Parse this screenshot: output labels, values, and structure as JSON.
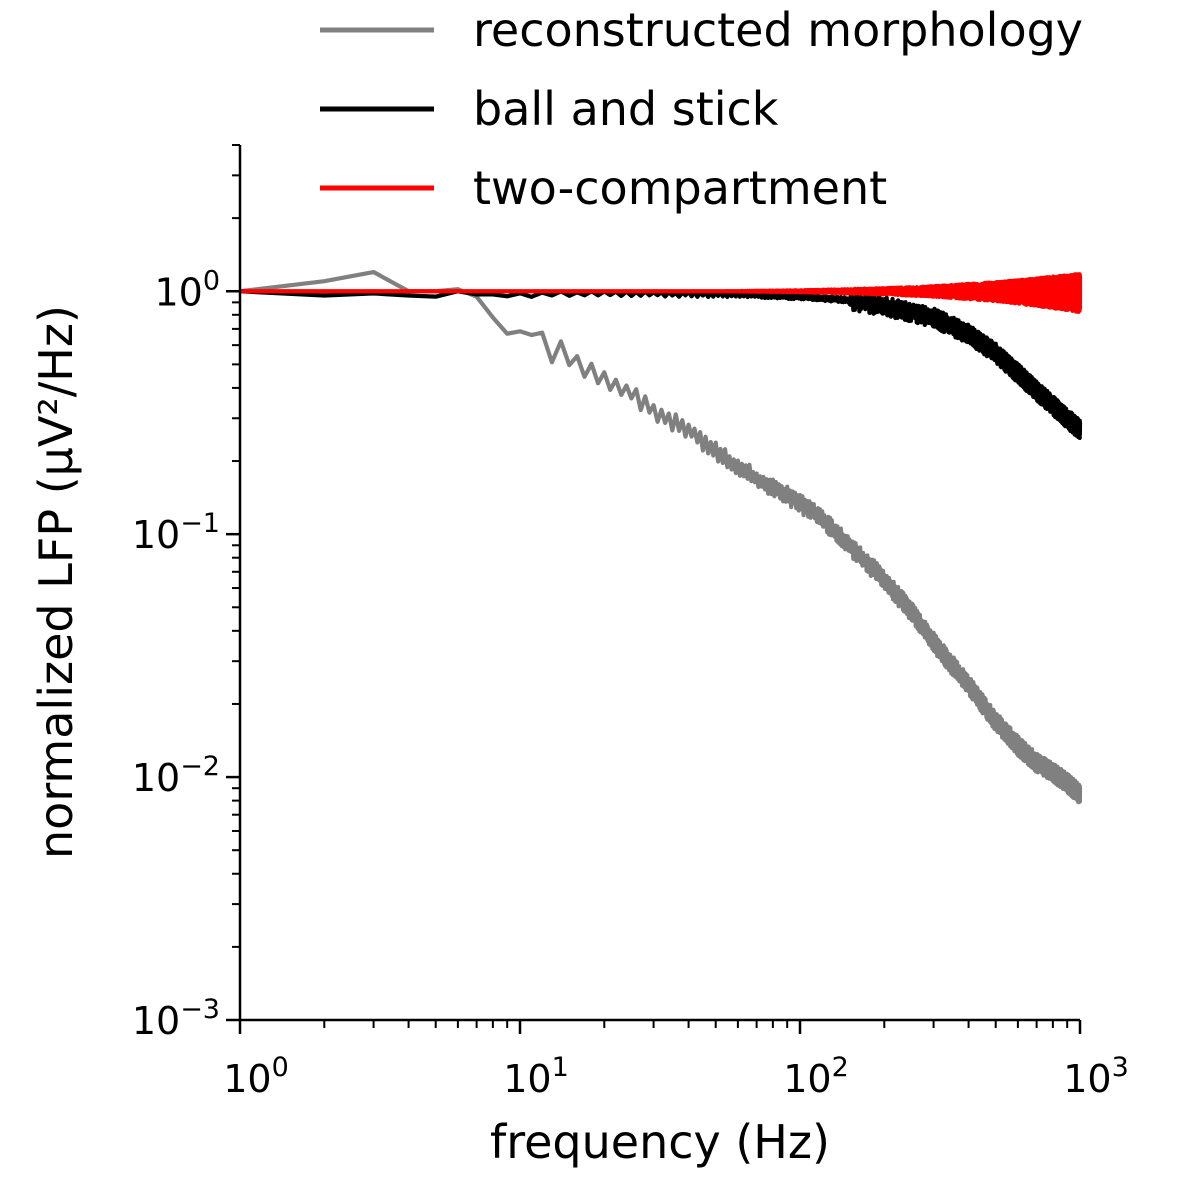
{
  "chart_data": {
    "type": "line",
    "xlabel": "frequency (Hz)",
    "ylabel": "normalized LFP (µV²/Hz)",
    "xscale": "log",
    "yscale": "log",
    "xlim": [
      1,
      1000
    ],
    "ylim": [
      0.001,
      4
    ],
    "grid": false,
    "legend_position": "top",
    "x_ticks": [
      {
        "value": 1,
        "base": "10",
        "exp": "0"
      },
      {
        "value": 10,
        "base": "10",
        "exp": "1"
      },
      {
        "value": 100,
        "base": "10",
        "exp": "2"
      },
      {
        "value": 1000,
        "base": "10",
        "exp": "3"
      }
    ],
    "y_ticks": [
      {
        "value": 0.001,
        "base": "10",
        "exp": "−3"
      },
      {
        "value": 0.01,
        "base": "10",
        "exp": "−2"
      },
      {
        "value": 0.1,
        "base": "10",
        "exp": "−1"
      },
      {
        "value": 1,
        "base": "10",
        "exp": "0"
      }
    ],
    "series": [
      {
        "name": "reconstructed morphology",
        "color": "#808080",
        "x": [
          1,
          2,
          3,
          4,
          5,
          6,
          7,
          8,
          9,
          10,
          11,
          12,
          13,
          14,
          15,
          17,
          20,
          25,
          30,
          40,
          50,
          60,
          80,
          100,
          120,
          150,
          200,
          250,
          300,
          400,
          500,
          600,
          700,
          800,
          900,
          1000
        ],
        "y": [
          1.0,
          1.1,
          1.2,
          1.0,
          1.0,
          1.02,
          0.95,
          0.78,
          0.72,
          0.65,
          0.71,
          0.62,
          0.55,
          0.58,
          0.52,
          0.48,
          0.44,
          0.38,
          0.32,
          0.27,
          0.22,
          0.19,
          0.155,
          0.135,
          0.115,
          0.09,
          0.065,
          0.048,
          0.036,
          0.024,
          0.017,
          0.0135,
          0.0115,
          0.0105,
          0.0095,
          0.0085
        ]
      },
      {
        "name": "ball and stick",
        "color": "#000000",
        "x": [
          1,
          2,
          3,
          4,
          5,
          6,
          7,
          10,
          20,
          50,
          100,
          150,
          200,
          300,
          400,
          500,
          600,
          700,
          800,
          900,
          1000
        ],
        "y": [
          1.0,
          0.96,
          0.98,
          0.96,
          0.95,
          1.0,
          0.97,
          0.97,
          0.98,
          0.97,
          0.95,
          0.92,
          0.87,
          0.78,
          0.67,
          0.56,
          0.46,
          0.39,
          0.34,
          0.3,
          0.27
        ]
      },
      {
        "name": "two-compartment",
        "color": "#ff0000",
        "x": [
          1,
          10,
          50,
          100,
          200,
          300,
          500,
          700,
          1000
        ],
        "y": [
          1.0,
          1.0,
          1.0,
          1.0,
          1.0,
          1.0,
          1.0,
          1.0,
          1.0
        ],
        "noise_band_fraction": [
          0.0,
          0.0,
          0.0,
          0.01,
          0.03,
          0.05,
          0.09,
          0.13,
          0.18
        ]
      }
    ]
  }
}
